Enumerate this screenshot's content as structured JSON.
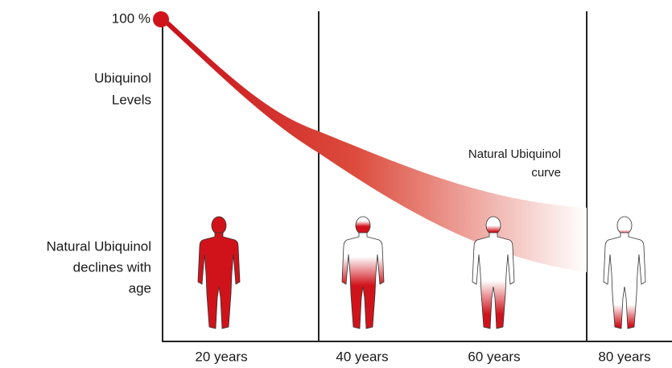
{
  "value_axis": {
    "top_label": "100 %",
    "title": [
      "Ubiquinol",
      "Levels"
    ]
  },
  "curve_label": [
    "Natural Ubiquinol",
    "curve"
  ],
  "figures_caption": [
    "Natural Ubiquinol",
    "declines with",
    "age"
  ],
  "ages": [
    "20 years",
    "40 years",
    "60 years",
    "80 years"
  ]
}
